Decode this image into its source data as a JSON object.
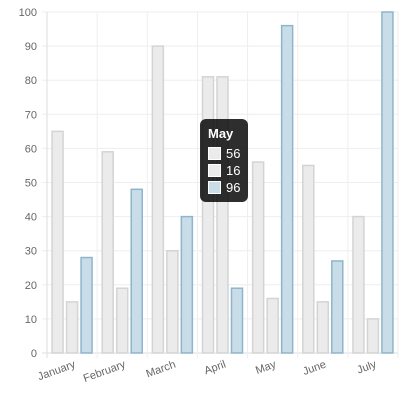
{
  "chart_data": {
    "type": "bar",
    "categories": [
      "January",
      "February",
      "March",
      "April",
      "May",
      "June",
      "July"
    ],
    "series": [
      {
        "values": [
          65,
          59,
          90,
          81,
          56,
          55,
          40
        ],
        "fill": "#ebebeb",
        "stroke": "#d4d4d4"
      },
      {
        "values": [
          15,
          19,
          30,
          81,
          16,
          15,
          10
        ],
        "fill": "#ebebeb",
        "stroke": "#d4d4d4"
      },
      {
        "values": [
          28,
          48,
          40,
          19,
          96,
          27,
          100
        ],
        "fill": "#c8dde8",
        "stroke": "#8fb5cc"
      }
    ],
    "ylim": [
      0,
      100
    ],
    "yticks": [
      0,
      10,
      20,
      30,
      40,
      50,
      60,
      70,
      80,
      90,
      100
    ],
    "grid": true
  },
  "tooltip": {
    "title": "May",
    "items": [
      {
        "value": "56",
        "color": "#ebebeb"
      },
      {
        "value": "16",
        "color": "#ebebeb"
      },
      {
        "value": "96",
        "color": "#c8dde8"
      }
    ]
  }
}
